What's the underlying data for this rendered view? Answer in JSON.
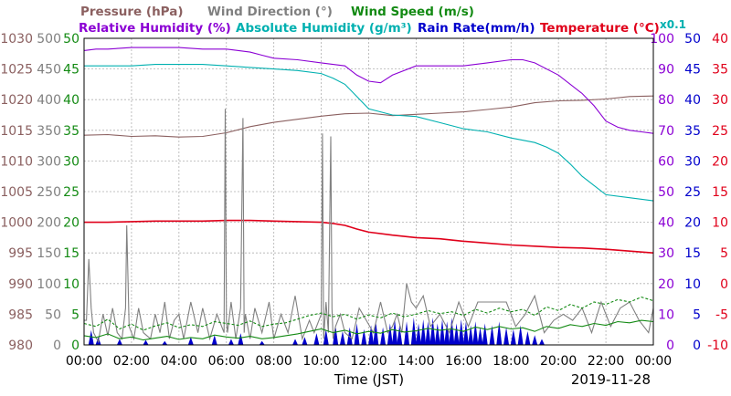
{
  "chart_data": {
    "type": "line",
    "legend_row1": [
      {
        "text": "Pressure (hPa)",
        "color": "#8B6060"
      },
      {
        "text": "Wind Direction (°)",
        "color": "#808080"
      },
      {
        "text": "Wind Speed (m/s)",
        "color": "#138A13"
      }
    ],
    "legend_row2": [
      {
        "text": "Relative Humidity (%)",
        "color": "#8B00D4"
      },
      {
        "text": "Absolute Humidity (g/m³)",
        "color": "#00B0B0"
      },
      {
        "text": "Rain Rate(mm/h)",
        "color": "#0000CC"
      },
      {
        "text": "Temperature (°C)",
        "color": "#E0001A"
      }
    ],
    "rain_scale_note": "x0.1",
    "xlabel": "Time (JST)",
    "date": "2019-11-28",
    "x_ticks": [
      "00:00",
      "02:00",
      "04:00",
      "06:00",
      "08:00",
      "10:00",
      "12:00",
      "14:00",
      "16:00",
      "18:00",
      "20:00",
      "22:00",
      "00:00"
    ],
    "left_axes": [
      {
        "name": "pressure",
        "color": "#8B6060",
        "ticks": [
          "1030",
          "1025",
          "1020",
          "1015",
          "1010",
          "1005",
          "1000",
          "995",
          "990",
          "985",
          "980"
        ],
        "ylim": [
          980,
          1030
        ]
      },
      {
        "name": "wind_direction",
        "color": "#808080",
        "ticks": [
          "500",
          "450",
          "400",
          "350",
          "300",
          "250",
          "200",
          "150",
          "100",
          "50",
          "0"
        ],
        "ylim": [
          0,
          500
        ]
      },
      {
        "name": "wind_speed",
        "color": "#138A13",
        "ticks": [
          "50",
          "45",
          "40",
          "35",
          "30",
          "25",
          "20",
          "15",
          "10",
          "5",
          "0"
        ],
        "ylim": [
          0,
          50
        ]
      }
    ],
    "right_axes": [
      {
        "name": "humidity",
        "color": "#8B00D4",
        "ticks": [
          "100",
          "90",
          "80",
          "70",
          "60",
          "50",
          "40",
          "30",
          "20",
          "10",
          "0"
        ],
        "ylim": [
          0,
          100
        ]
      },
      {
        "name": "rain_rate",
        "color": "#0000CC",
        "ticks": [
          "50",
          "45",
          "40",
          "35",
          "30",
          "25",
          "20",
          "15",
          "10",
          "5",
          "0"
        ],
        "ylim": [
          0,
          50
        ]
      },
      {
        "name": "temperature",
        "color": "#E0001A",
        "ticks": [
          "40",
          "35",
          "30",
          "25",
          "20",
          "15",
          "10",
          "5",
          "0",
          "-5",
          "-10"
        ],
        "ylim": [
          -10,
          40
        ]
      }
    ],
    "series": [
      {
        "name": "Pressure (hPa)",
        "axis": "pressure",
        "color": "#8B6060",
        "x": [
          0,
          1,
          2,
          3,
          4,
          5,
          6,
          7,
          8,
          9,
          10,
          11,
          12,
          13,
          14,
          15,
          16,
          17,
          18,
          19,
          20,
          21,
          22,
          23,
          24
        ],
        "values": [
          1014.2,
          1014.3,
          1014.0,
          1014.1,
          1013.9,
          1014.0,
          1014.6,
          1015.6,
          1016.3,
          1016.8,
          1017.3,
          1017.7,
          1017.8,
          1017.4,
          1017.6,
          1017.8,
          1018.0,
          1018.4,
          1018.8,
          1019.5,
          1019.8,
          1019.9,
          1020.1,
          1020.5,
          1020.6
        ]
      },
      {
        "name": "Relative Humidity (%)",
        "axis": "humidity",
        "color": "#8B00D4",
        "x": [
          0,
          0.5,
          1,
          2,
          3,
          4,
          5,
          6,
          7,
          7.5,
          8,
          9,
          10,
          10.5,
          11,
          11.5,
          12,
          12.5,
          13,
          14,
          15,
          16,
          17,
          18,
          18.5,
          19,
          20,
          21,
          21.5,
          22,
          22.5,
          23,
          23.5,
          24
        ],
        "values": [
          96,
          96.5,
          96.5,
          97,
          97,
          97,
          96.5,
          96.5,
          95.5,
          94.5,
          93.5,
          93,
          92,
          91.5,
          91,
          88,
          86,
          85.5,
          88,
          91,
          91,
          91,
          92,
          93,
          93,
          92,
          88,
          82,
          78,
          73,
          71,
          70,
          69.5,
          69
        ]
      },
      {
        "name": "Absolute Humidity (g/m³)",
        "axis": "humidity",
        "color": "#00B0B0",
        "x": [
          0,
          0.5,
          1,
          2,
          3,
          4,
          5,
          6,
          7,
          8,
          9,
          10,
          10.5,
          11,
          11.5,
          12,
          12.5,
          13,
          14,
          15,
          16,
          17,
          18,
          19,
          19.5,
          20,
          20.5,
          21,
          21.5,
          22,
          23,
          24
        ],
        "values": [
          91,
          91,
          91,
          91,
          91.5,
          91.5,
          91.5,
          91,
          90.5,
          90,
          89.5,
          88.5,
          87,
          85,
          81,
          77,
          76,
          75,
          74.5,
          72.5,
          70.5,
          69.5,
          67.5,
          66,
          64.5,
          62.5,
          59,
          55,
          52,
          49,
          48,
          47
        ]
      },
      {
        "name": "Temperature (°C)",
        "axis": "temperature",
        "color": "#E0001A",
        "x": [
          0,
          1,
          2,
          3,
          4,
          5,
          6,
          7,
          8,
          9,
          10,
          10.5,
          11,
          11.5,
          12,
          13,
          14,
          15,
          16,
          17,
          18,
          19,
          20,
          21,
          22,
          23,
          24
        ],
        "values": [
          10.0,
          10.0,
          10.1,
          10.2,
          10.2,
          10.2,
          10.3,
          10.3,
          10.2,
          10.1,
          10.0,
          9.8,
          9.5,
          8.9,
          8.4,
          7.9,
          7.5,
          7.3,
          6.9,
          6.6,
          6.3,
          6.1,
          5.9,
          5.8,
          5.6,
          5.3,
          5.0
        ]
      },
      {
        "name": "Wind Direction (°)",
        "axis": "wind_direction",
        "color": "#808080",
        "x": [
          0,
          0.1,
          0.2,
          0.3,
          0.4,
          0.6,
          0.8,
          1.0,
          1.2,
          1.4,
          1.6,
          1.75,
          1.8,
          1.9,
          2.1,
          2.3,
          2.5,
          2.8,
          3.0,
          3.2,
          3.4,
          3.6,
          3.8,
          4.0,
          4.2,
          4.5,
          4.8,
          5.0,
          5.3,
          5.6,
          5.9,
          5.95,
          6.0,
          6.05,
          6.2,
          6.4,
          6.6,
          6.7,
          6.75,
          6.8,
          7.0,
          7.2,
          7.5,
          7.8,
          8.0,
          8.3,
          8.6,
          8.9,
          9.2,
          9.5,
          9.7,
          10.0,
          10.05,
          10.1,
          10.2,
          10.3,
          10.4,
          10.45,
          10.5,
          10.6,
          10.8,
          11.0,
          11.3,
          11.6,
          11.9,
          12.2,
          12.5,
          12.8,
          13.0,
          13.2,
          13.4,
          13.6,
          13.8,
          14.0,
          14.3,
          14.6,
          15.0,
          15.4,
          15.8,
          16.2,
          16.6,
          17.0,
          17.4,
          17.8,
          18.2,
          18.6,
          19.0,
          19.4,
          19.8,
          20.2,
          20.6,
          21.0,
          21.4,
          21.8,
          22.2,
          22.6,
          23.0,
          23.4,
          23.8,
          24
        ],
        "values": [
          40,
          40,
          140,
          60,
          20,
          5,
          50,
          15,
          60,
          20,
          10,
          60,
          195,
          30,
          10,
          60,
          20,
          10,
          50,
          20,
          70,
          10,
          40,
          50,
          10,
          70,
          20,
          60,
          10,
          50,
          20,
          385,
          40,
          20,
          70,
          10,
          60,
          370,
          20,
          50,
          10,
          60,
          20,
          70,
          10,
          50,
          20,
          80,
          10,
          40,
          20,
          50,
          345,
          10,
          70,
          20,
          340,
          60,
          10,
          30,
          50,
          20,
          10,
          60,
          40,
          20,
          70,
          20,
          30,
          50,
          20,
          100,
          70,
          60,
          80,
          30,
          50,
          20,
          70,
          30,
          70,
          70,
          70,
          70,
          30,
          50,
          80,
          20,
          40,
          50,
          40,
          60,
          20,
          70,
          30,
          60,
          70,
          40,
          20,
          60
        ]
      },
      {
        "name": "Wind Speed (m/s)",
        "axis": "wind_speed",
        "color": "#138A13",
        "x": [
          0,
          0.5,
          1,
          1.5,
          2,
          2.5,
          3,
          3.5,
          4,
          4.5,
          5,
          5.5,
          6,
          6.5,
          7,
          7.5,
          8,
          8.5,
          9,
          9.5,
          10,
          10.5,
          11,
          11.5,
          12,
          12.5,
          13,
          13.5,
          14,
          14.5,
          15,
          15.5,
          16,
          16.5,
          17,
          17.5,
          18,
          18.5,
          19,
          19.5,
          20,
          20.5,
          21,
          21.5,
          22,
          22.5,
          23,
          23.5,
          24
        ],
        "values": [
          1.5,
          1.2,
          1.8,
          1.0,
          1.3,
          0.8,
          1.1,
          1.4,
          0.9,
          1.2,
          1.0,
          1.6,
          1.3,
          1.1,
          1.4,
          1.0,
          1.2,
          1.5,
          1.8,
          2.2,
          2.6,
          2.0,
          2.4,
          1.8,
          2.2,
          1.9,
          2.5,
          2.1,
          2.3,
          2.7,
          2.4,
          2.6,
          2.2,
          2.9,
          2.5,
          3.0,
          2.6,
          2.8,
          2.2,
          3.0,
          2.7,
          3.3,
          3.0,
          3.5,
          3.2,
          3.8,
          3.6,
          4.0,
          3.8
        ]
      },
      {
        "name": "Wind Speed gust",
        "axis": "wind_speed",
        "color": "#138A13",
        "x": [
          0,
          0.5,
          1,
          1.5,
          2,
          2.5,
          3,
          3.5,
          4,
          4.5,
          5,
          5.5,
          6,
          6.5,
          7,
          7.5,
          8,
          8.5,
          9,
          9.5,
          10,
          10.5,
          11,
          11.5,
          12,
          12.5,
          13,
          13.5,
          14,
          14.5,
          15,
          15.5,
          16,
          16.5,
          17,
          17.5,
          18,
          18.5,
          19,
          19.5,
          20,
          20.5,
          21,
          21.5,
          22,
          22.5,
          23,
          23.5,
          24
        ],
        "values": [
          3.5,
          3.0,
          4.2,
          2.6,
          3.4,
          2.4,
          3.1,
          3.6,
          2.8,
          3.3,
          3.0,
          3.8,
          3.5,
          3.2,
          3.9,
          3.0,
          3.4,
          3.6,
          4.2,
          4.8,
          5.2,
          4.6,
          5.0,
          4.2,
          4.9,
          4.4,
          5.2,
          4.6,
          5.0,
          5.6,
          5.1,
          5.4,
          4.8,
          5.8,
          5.2,
          6.0,
          5.4,
          5.8,
          4.8,
          6.2,
          5.6,
          6.6,
          6.0,
          7.0,
          6.6,
          7.4,
          7.0,
          7.8,
          7.2
        ]
      }
    ],
    "rain_rate": {
      "name": "Rain Rate(mm/h)",
      "axis": "rain_rate",
      "color": "#0000CC",
      "x": [
        0.3,
        0.6,
        1.5,
        2.6,
        3.4,
        4.5,
        5.5,
        6.2,
        6.6,
        7.5,
        8.9,
        9.3,
        9.8,
        10.2,
        10.6,
        10.9,
        11.2,
        11.5,
        11.8,
        12.1,
        12.3,
        12.6,
        12.9,
        13.1,
        13.3,
        13.6,
        13.9,
        14.1,
        14.3,
        14.5,
        14.7,
        14.9,
        15.1,
        15.3,
        15.5,
        15.7,
        15.9,
        16.1,
        16.3,
        16.5,
        16.7,
        16.9,
        17.2,
        17.5,
        17.8,
        18.1,
        18.4,
        18.7,
        19.0,
        19.3
      ],
      "values": [
        15,
        8,
        6,
        5,
        4,
        8,
        10,
        6,
        12,
        4,
        6,
        8,
        12,
        16,
        20,
        14,
        18,
        22,
        16,
        20,
        24,
        18,
        22,
        26,
        20,
        24,
        28,
        22,
        26,
        24,
        28,
        22,
        26,
        24,
        28,
        22,
        26,
        24,
        20,
        24,
        18,
        22,
        20,
        24,
        18,
        16,
        20,
        14,
        10,
        6
      ]
    }
  }
}
